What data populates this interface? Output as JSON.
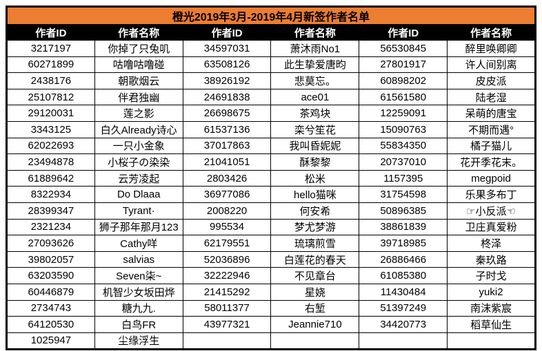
{
  "title": "橙光2019年3月-2019年4月新签作者名单",
  "columns": [
    "作者ID",
    "作者名称",
    "作者ID",
    "作者名称",
    "作者ID",
    "作者名称"
  ],
  "colors": {
    "title_bg": "#ED7D31",
    "title_text": "#000000",
    "header_bg": "#000000",
    "header_text": "#FFFFFF",
    "grid": "#000000"
  },
  "rows": [
    [
      "3217197",
      "你掉了只兔叽",
      "34597031",
      "萧沐雨No1",
      "56530845",
      "醉里唤卿卿"
    ],
    [
      "60271899",
      "咕噜咕噜碰",
      "63508126",
      "此生挚爱唐昀",
      "27801917",
      "许人间别离"
    ],
    [
      "2438176",
      "朝歌烟云",
      "38926192",
      "悲莫忘。",
      "60898202",
      "皮皮派"
    ],
    [
      "25107812",
      "伴君独幽",
      "24691838",
      "ace01",
      "61561580",
      "陆老湿"
    ],
    [
      "29120031",
      "莲之影",
      "26698675",
      "茶鸡块",
      "12259091",
      "呆萌的唐宝"
    ],
    [
      "3343125",
      "白久Already诗心",
      "61537136",
      "栾兮笙花",
      "15090763",
      "不期而遇°"
    ],
    [
      "62022693",
      "一只小金象",
      "37017863",
      "我叫昏妮妮",
      "55834350",
      "橘子猫儿"
    ],
    [
      "23494878",
      "小桜子の染染",
      "21041051",
      "酥黎黎",
      "20737010",
      "花开季花末。"
    ],
    [
      "61889642",
      "云芳凌起",
      "2803426",
      "松米",
      "1157395",
      "megpoid"
    ],
    [
      "8322934",
      "Do Dlaaa",
      "36977086",
      "hello猫咪",
      "31754598",
      "乐果多布丁"
    ],
    [
      "28399347",
      "Tyrant·",
      "2008220",
      "何安希",
      "50896385",
      "☞小反派☜"
    ],
    [
      "2321234",
      "狮子那年那月123",
      "995534",
      "梦尤梦游",
      "38861839",
      "卫庄真爱粉"
    ],
    [
      "27093626",
      "Cathy咩",
      "62179551",
      "琉璃煎雪",
      "39718985",
      "柊泽"
    ],
    [
      "39802057",
      "salvias",
      "52036896",
      "白莲花的春天",
      "26886466",
      "秦玖路"
    ],
    [
      "63203590",
      "Seven柒~",
      "32222946",
      "不见章台",
      "61085380",
      "子时戈"
    ],
    [
      "60446879",
      "机智少女坂田烨",
      "21415292",
      "星娆",
      "11430484",
      "yuki2"
    ],
    [
      "2734743",
      "糖九九.",
      "58011377",
      "右堑",
      "51397249",
      "南沫紫宸"
    ],
    [
      "64120530",
      "白鸟FR",
      "43977321",
      "Jeannie710",
      "34420773",
      "稻草仙生"
    ],
    [
      "1025947",
      "尘缘浮生",
      "",
      "",
      "",
      ""
    ]
  ]
}
